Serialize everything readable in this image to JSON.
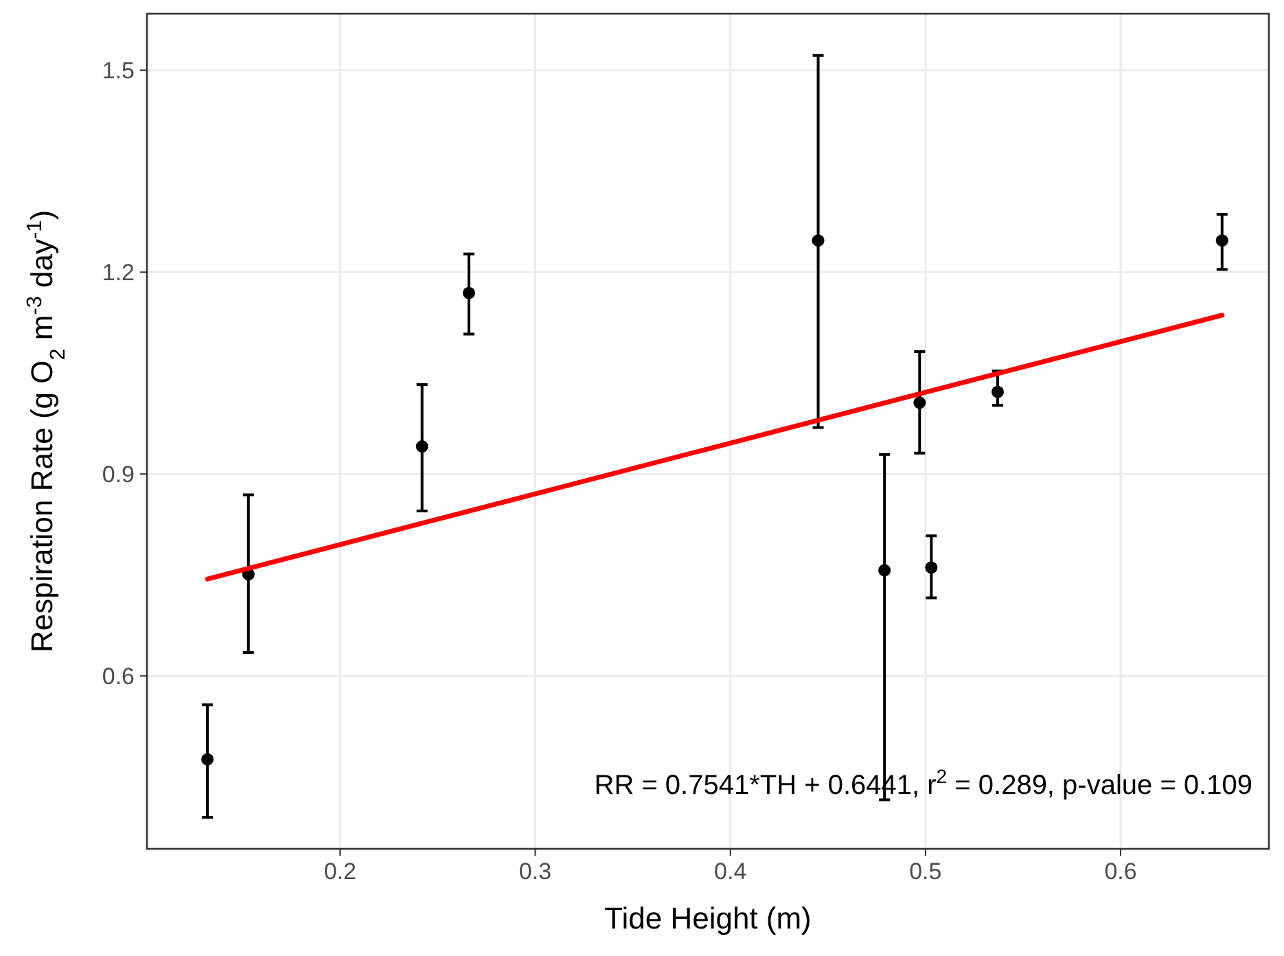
{
  "chart_data": {
    "type": "scatter",
    "xlabel": "Tide Height (m)",
    "ylabel": "Respiration Rate (g O$_{2}$ m$^{-3}$ day$^{-1}$)",
    "xlim": [
      0.101,
      0.676
    ],
    "ylim": [
      0.343,
      1.584
    ],
    "xticks": [
      0.2,
      0.3,
      0.4,
      0.5,
      0.6
    ],
    "yticks": [
      0.6,
      0.9,
      1.2,
      1.5
    ],
    "grid": true,
    "series": [
      {
        "marker": "circle",
        "color": "#000000",
        "x": [
          0.132,
          0.153,
          0.242,
          0.266,
          0.445,
          0.479,
          0.497,
          0.503,
          0.537,
          0.652
        ],
        "values": [
          0.476,
          0.751,
          0.941,
          1.169,
          1.247,
          0.757,
          1.006,
          0.761,
          1.022,
          1.247
        ],
        "errors": [
          [
            0.39,
            0.557
          ],
          [
            0.635,
            0.869
          ],
          [
            0.845,
            1.033
          ],
          [
            1.108,
            1.227
          ],
          [
            0.969,
            1.522
          ],
          [
            0.416,
            0.929
          ],
          [
            0.931,
            1.082
          ],
          [
            0.716,
            0.808
          ],
          [
            1.002,
            1.053
          ],
          [
            1.204,
            1.286
          ]
        ]
      },
      {
        "type": "line",
        "color": "#ff0000",
        "x": [
          0.132,
          0.652
        ],
        "values": [
          0.744,
          1.136
        ]
      }
    ],
    "annotations": [
      "RR = 0.7541*TH + 0.6441, r$^{2}$ = 0.289, p-value = 0.109"
    ]
  }
}
